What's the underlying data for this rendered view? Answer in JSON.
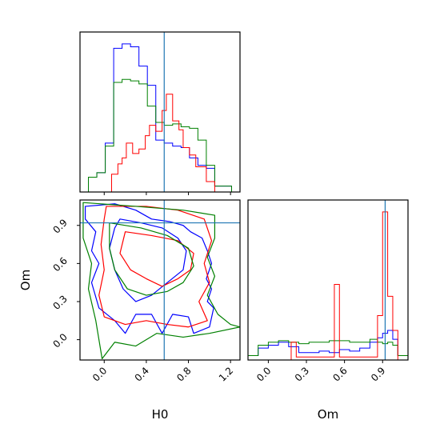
{
  "colors": {
    "blue": "#0000ff",
    "red": "#ff0000",
    "green": "#008000",
    "truth": "#1f77b4",
    "axis": "#000000"
  },
  "chart_data": [
    {
      "panel": "H0 marginal",
      "type": "histogram",
      "x_range": [
        -0.23,
        1.29
      ],
      "truth_x": 0.57,
      "series": [
        {
          "color": "blue",
          "edges": [
            -0.15,
            -0.07,
            0.01,
            0.09,
            0.17,
            0.25,
            0.33,
            0.41,
            0.49,
            0.57,
            0.65,
            0.73,
            0.81,
            0.89,
            0.97,
            1.05,
            1.13,
            1.21
          ],
          "heights": [
            0.1,
            0.13,
            0.33,
            0.97,
            1.0,
            0.98,
            0.85,
            0.72,
            0.35,
            0.33,
            0.31,
            0.3,
            0.23,
            0.18,
            0.16,
            0.04,
            0.04
          ]
        },
        {
          "color": "green",
          "edges": [
            -0.15,
            -0.07,
            0.01,
            0.09,
            0.17,
            0.25,
            0.33,
            0.41,
            0.49,
            0.57,
            0.65,
            0.73,
            0.81,
            0.89,
            0.97,
            1.05,
            1.13,
            1.21
          ],
          "heights": [
            0.1,
            0.13,
            0.31,
            0.74,
            0.76,
            0.75,
            0.73,
            0.58,
            0.47,
            0.45,
            0.46,
            0.44,
            0.43,
            0.35,
            0.18,
            0.04,
            0.04
          ]
        },
        {
          "color": "red",
          "edges": [
            -0.01,
            0.07,
            0.13,
            0.17,
            0.21,
            0.27,
            0.33,
            0.39,
            0.43,
            0.49,
            0.55,
            0.59,
            0.65,
            0.71,
            0.75,
            0.81,
            0.87,
            0.97,
            1.05,
            1.13
          ],
          "heights": [
            0.0,
            0.12,
            0.19,
            0.23,
            0.33,
            0.26,
            0.29,
            0.38,
            0.45,
            0.41,
            0.55,
            0.66,
            0.48,
            0.42,
            0.3,
            0.25,
            0.17,
            0.07,
            0.0
          ]
        }
      ]
    },
    {
      "panel": "Om vs H0",
      "type": "contour",
      "x_range": [
        -0.23,
        1.29
      ],
      "y_range": [
        -0.16,
        1.1
      ],
      "x_ticks": [
        "0.0",
        "0.4",
        "0.8",
        "1.2"
      ],
      "x_tick_values": [
        0.0,
        0.4,
        0.8,
        1.2
      ],
      "y_ticks": [
        "0.0",
        "0.3",
        "0.6",
        "0.9"
      ],
      "y_tick_values": [
        0.0,
        0.3,
        0.6,
        0.9
      ],
      "xlabel": "H0",
      "ylabel": "Om",
      "truth": [
        0.57,
        0.92
      ],
      "contours": [
        {
          "color": "blue",
          "points": [
            [
              -0.18,
              1.05
            ],
            [
              0.1,
              1.07
            ],
            [
              0.3,
              1.02
            ],
            [
              0.45,
              0.95
            ],
            [
              0.62,
              0.93
            ],
            [
              0.75,
              0.9
            ],
            [
              0.82,
              0.85
            ],
            [
              0.93,
              0.8
            ],
            [
              0.98,
              0.7
            ],
            [
              1.02,
              0.6
            ],
            [
              0.97,
              0.48
            ],
            [
              1.02,
              0.4
            ],
            [
              0.98,
              0.3
            ],
            [
              1.04,
              0.25
            ],
            [
              1.0,
              0.1
            ],
            [
              0.85,
              0.05
            ],
            [
              0.8,
              0.18
            ],
            [
              0.65,
              0.2
            ],
            [
              0.55,
              0.05
            ],
            [
              0.45,
              0.2
            ],
            [
              0.3,
              0.2
            ],
            [
              0.2,
              0.05
            ],
            [
              0.1,
              0.15
            ],
            [
              -0.05,
              0.25
            ],
            [
              -0.12,
              0.45
            ],
            [
              -0.05,
              0.6
            ],
            [
              -0.12,
              0.7
            ],
            [
              -0.08,
              0.85
            ],
            [
              -0.18,
              0.95
            ],
            [
              -0.18,
              1.05
            ]
          ]
        },
        {
          "color": "blue",
          "points": [
            [
              0.15,
              0.95
            ],
            [
              0.35,
              0.92
            ],
            [
              0.55,
              0.88
            ],
            [
              0.7,
              0.8
            ],
            [
              0.78,
              0.7
            ],
            [
              0.75,
              0.55
            ],
            [
              0.6,
              0.45
            ],
            [
              0.45,
              0.35
            ],
            [
              0.3,
              0.3
            ],
            [
              0.18,
              0.4
            ],
            [
              0.1,
              0.55
            ],
            [
              0.05,
              0.72
            ],
            [
              0.1,
              0.88
            ],
            [
              0.15,
              0.95
            ]
          ]
        },
        {
          "color": "red",
          "points": [
            [
              0.02,
              1.05
            ],
            [
              0.4,
              1.05
            ],
            [
              0.7,
              1.02
            ],
            [
              0.95,
              0.95
            ],
            [
              1.02,
              0.78
            ],
            [
              0.95,
              0.6
            ],
            [
              1.0,
              0.45
            ],
            [
              0.9,
              0.3
            ],
            [
              0.98,
              0.15
            ],
            [
              0.8,
              0.1
            ],
            [
              0.6,
              0.12
            ],
            [
              0.4,
              0.15
            ],
            [
              0.2,
              0.12
            ],
            [
              0.0,
              0.18
            ],
            [
              -0.05,
              0.35
            ],
            [
              0.0,
              0.55
            ],
            [
              -0.03,
              0.75
            ],
            [
              0.0,
              0.95
            ],
            [
              0.02,
              1.05
            ]
          ]
        },
        {
          "color": "red",
          "points": [
            [
              0.2,
              0.85
            ],
            [
              0.45,
              0.82
            ],
            [
              0.7,
              0.78
            ],
            [
              0.85,
              0.68
            ],
            [
              0.82,
              0.55
            ],
            [
              0.7,
              0.48
            ],
            [
              0.55,
              0.42
            ],
            [
              0.4,
              0.48
            ],
            [
              0.25,
              0.55
            ],
            [
              0.15,
              0.68
            ],
            [
              0.2,
              0.85
            ]
          ]
        },
        {
          "color": "green",
          "points": [
            [
              -0.2,
              1.08
            ],
            [
              0.3,
              1.05
            ],
            [
              0.75,
              1.02
            ],
            [
              1.05,
              0.98
            ],
            [
              1.05,
              0.8
            ],
            [
              0.98,
              0.65
            ],
            [
              1.05,
              0.5
            ],
            [
              0.98,
              0.35
            ],
            [
              1.08,
              0.2
            ],
            [
              1.2,
              0.12
            ],
            [
              1.29,
              0.1
            ],
            [
              1.0,
              0.05
            ],
            [
              0.75,
              0.02
            ],
            [
              0.5,
              0.05
            ],
            [
              0.3,
              -0.05
            ],
            [
              0.1,
              -0.02
            ],
            [
              -0.02,
              -0.15
            ],
            [
              -0.08,
              0.15
            ],
            [
              -0.15,
              0.4
            ],
            [
              -0.12,
              0.6
            ],
            [
              -0.2,
              0.8
            ],
            [
              -0.2,
              1.08
            ]
          ]
        },
        {
          "color": "green",
          "points": [
            [
              0.05,
              0.92
            ],
            [
              0.35,
              0.88
            ],
            [
              0.6,
              0.82
            ],
            [
              0.8,
              0.72
            ],
            [
              0.85,
              0.58
            ],
            [
              0.75,
              0.45
            ],
            [
              0.6,
              0.38
            ],
            [
              0.4,
              0.35
            ],
            [
              0.22,
              0.4
            ],
            [
              0.1,
              0.55
            ],
            [
              0.05,
              0.72
            ],
            [
              0.05,
              0.92
            ]
          ]
        }
      ]
    },
    {
      "panel": "Om marginal",
      "type": "histogram",
      "x_range": [
        -0.16,
        1.1
      ],
      "x_ticks": [
        "0.0",
        "0.3",
        "0.6",
        "0.9"
      ],
      "x_tick_values": [
        0.0,
        0.3,
        0.6,
        0.9
      ],
      "xlabel": "Om",
      "truth_x": 0.92,
      "series": [
        {
          "color": "blue",
          "edges": [
            -0.16,
            -0.08,
            0.0,
            0.08,
            0.16,
            0.24,
            0.32,
            0.4,
            0.48,
            0.56,
            0.64,
            0.72,
            0.8,
            0.86,
            0.9,
            0.94,
            0.98,
            1.02,
            1.1
          ],
          "heights": [
            0.03,
            0.08,
            0.1,
            0.12,
            0.09,
            0.05,
            0.05,
            0.06,
            0.05,
            0.07,
            0.06,
            0.08,
            0.12,
            0.15,
            0.18,
            0.2,
            0.14,
            0.03
          ]
        },
        {
          "color": "green",
          "edges": [
            -0.16,
            -0.08,
            0.0,
            0.08,
            0.16,
            0.24,
            0.32,
            0.4,
            0.48,
            0.56,
            0.64,
            0.72,
            0.8,
            0.86,
            0.9,
            0.94,
            0.98,
            1.02,
            1.1
          ],
          "heights": [
            0.03,
            0.1,
            0.12,
            0.13,
            0.12,
            0.11,
            0.12,
            0.12,
            0.13,
            0.13,
            0.12,
            0.12,
            0.14,
            0.12,
            0.11,
            0.12,
            0.1,
            0.03
          ]
        },
        {
          "color": "red",
          "edges": [
            0.18,
            0.22,
            0.52,
            0.56,
            0.86,
            0.9,
            0.94,
            0.98,
            1.02
          ],
          "heights": [
            0.12,
            0.02,
            0.51,
            0.02,
            0.3,
            1.0,
            0.43,
            0.2
          ]
        }
      ]
    }
  ]
}
